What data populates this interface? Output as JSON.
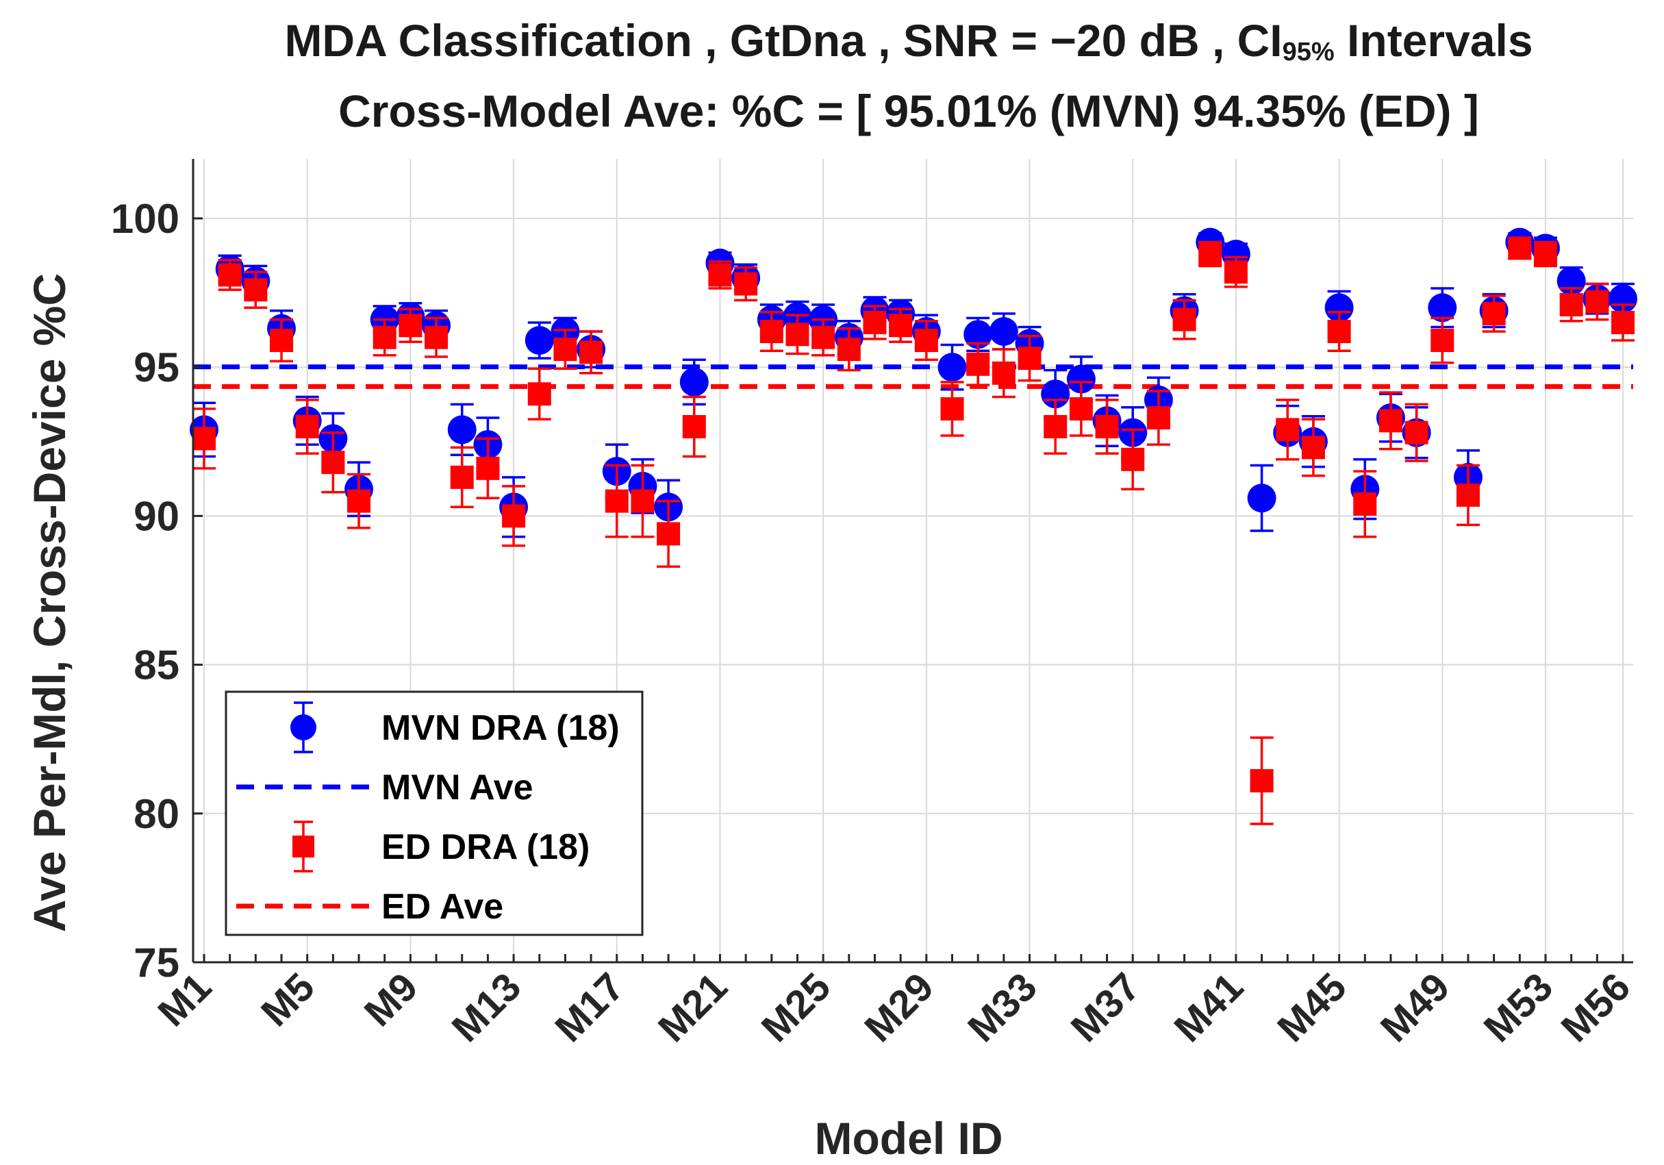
{
  "chart_data": {
    "type": "scatter",
    "title_line1": {
      "main": "MDA Classification , GtDna , SNR = −20 dB , CI",
      "subscript": "95%",
      "tail": " Intervals"
    },
    "title_line2": "Cross-Model Ave: %C = [ 95.01% (MVN)   94.35% (ED) ]",
    "xlabel": "Model ID",
    "ylabel": "Ave Per-Mdl, Cross-Device %C",
    "ylim": [
      75,
      102
    ],
    "yticks": [
      75,
      80,
      85,
      90,
      95,
      100
    ],
    "x_count": 56,
    "xticks": [
      {
        "index": 1,
        "label": "M1"
      },
      {
        "index": 5,
        "label": "M5"
      },
      {
        "index": 9,
        "label": "M9"
      },
      {
        "index": 13,
        "label": "M13"
      },
      {
        "index": 17,
        "label": "M17"
      },
      {
        "index": 21,
        "label": "M21"
      },
      {
        "index": 25,
        "label": "M25"
      },
      {
        "index": 29,
        "label": "M29"
      },
      {
        "index": 33,
        "label": "M33"
      },
      {
        "index": 37,
        "label": "M37"
      },
      {
        "index": 41,
        "label": "M41"
      },
      {
        "index": 45,
        "label": "M45"
      },
      {
        "index": 49,
        "label": "M49"
      },
      {
        "index": 53,
        "label": "M53"
      },
      {
        "index": 56,
        "label": "M56"
      }
    ],
    "grid": true,
    "legend_position": "bottom-left",
    "series": [
      {
        "name": "MVN DRA (18)",
        "marker": "circle",
        "color": "#0000ff",
        "values": [
          92.9,
          98.3,
          97.9,
          96.3,
          93.2,
          92.6,
          90.9,
          96.6,
          96.7,
          96.4,
          92.9,
          92.4,
          90.3,
          95.9,
          96.2,
          95.6,
          91.5,
          91.0,
          90.3,
          94.5,
          98.5,
          98.0,
          96.6,
          96.7,
          96.6,
          96.0,
          96.9,
          96.8,
          96.2,
          95.0,
          96.1,
          96.2,
          95.8,
          94.1,
          94.6,
          93.2,
          92.8,
          93.9,
          96.9,
          99.2,
          98.8,
          90.6,
          92.8,
          92.5,
          97.0,
          90.9,
          93.3,
          92.8,
          97.0,
          91.3,
          96.9,
          99.2,
          99.0,
          97.9,
          97.3,
          97.3
        ],
        "ci": [
          0.9,
          0.45,
          0.5,
          0.6,
          0.8,
          0.85,
          0.9,
          0.45,
          0.45,
          0.5,
          0.85,
          0.9,
          1.0,
          0.6,
          0.45,
          0.6,
          0.9,
          0.9,
          0.9,
          0.75,
          0.35,
          0.45,
          0.5,
          0.5,
          0.5,
          0.55,
          0.45,
          0.45,
          0.55,
          0.75,
          0.55,
          0.6,
          0.55,
          0.8,
          0.75,
          0.85,
          0.85,
          0.75,
          0.55,
          0.3,
          0.35,
          1.1,
          0.9,
          0.85,
          0.55,
          1.0,
          0.8,
          0.85,
          0.65,
          0.9,
          0.55,
          0.3,
          0.35,
          0.45,
          0.5,
          0.5
        ]
      },
      {
        "name": "ED DRA (18)",
        "marker": "square",
        "color": "#ff0000",
        "values": [
          92.6,
          98.1,
          97.6,
          95.9,
          93.0,
          91.8,
          90.5,
          96.0,
          96.4,
          96.0,
          91.3,
          91.6,
          90.0,
          94.1,
          95.6,
          95.5,
          90.5,
          90.5,
          89.4,
          93.0,
          98.1,
          97.8,
          96.2,
          96.1,
          96.0,
          95.6,
          96.5,
          96.4,
          95.9,
          93.6,
          95.1,
          94.8,
          95.3,
          93.0,
          93.6,
          93.0,
          91.9,
          93.3,
          96.6,
          98.8,
          98.2,
          81.1,
          92.9,
          92.3,
          96.2,
          90.4,
          93.2,
          92.8,
          95.9,
          90.7,
          96.8,
          99.0,
          98.8,
          97.1,
          97.2,
          96.5
        ],
        "ci": [
          1.0,
          0.5,
          0.6,
          0.7,
          0.9,
          1.0,
          0.9,
          0.6,
          0.55,
          0.65,
          1.0,
          1.0,
          1.0,
          0.85,
          0.65,
          0.7,
          1.2,
          1.2,
          1.1,
          1.0,
          0.45,
          0.55,
          0.65,
          0.65,
          0.6,
          0.7,
          0.55,
          0.55,
          0.65,
          0.9,
          0.7,
          0.8,
          0.75,
          0.9,
          0.9,
          0.9,
          1.0,
          0.9,
          0.65,
          0.4,
          0.5,
          1.45,
          1.0,
          0.95,
          0.65,
          1.1,
          0.95,
          0.95,
          0.75,
          1.0,
          0.6,
          0.35,
          0.4,
          0.55,
          0.6,
          0.6
        ]
      }
    ],
    "averages": [
      {
        "name": "MVN Ave",
        "value": 95.01,
        "color": "#0000ff"
      },
      {
        "name": "ED Ave",
        "value": 94.35,
        "color": "#ff0000"
      }
    ],
    "legend": [
      {
        "label": "MVN DRA (18)",
        "kind": "circle",
        "color": "#0000ff"
      },
      {
        "label": "MVN Ave",
        "kind": "dash",
        "color": "#0000ff"
      },
      {
        "label": "ED DRA (18)",
        "kind": "square",
        "color": "#ff0000"
      },
      {
        "label": "ED Ave",
        "kind": "dash",
        "color": "#ff0000"
      }
    ]
  }
}
